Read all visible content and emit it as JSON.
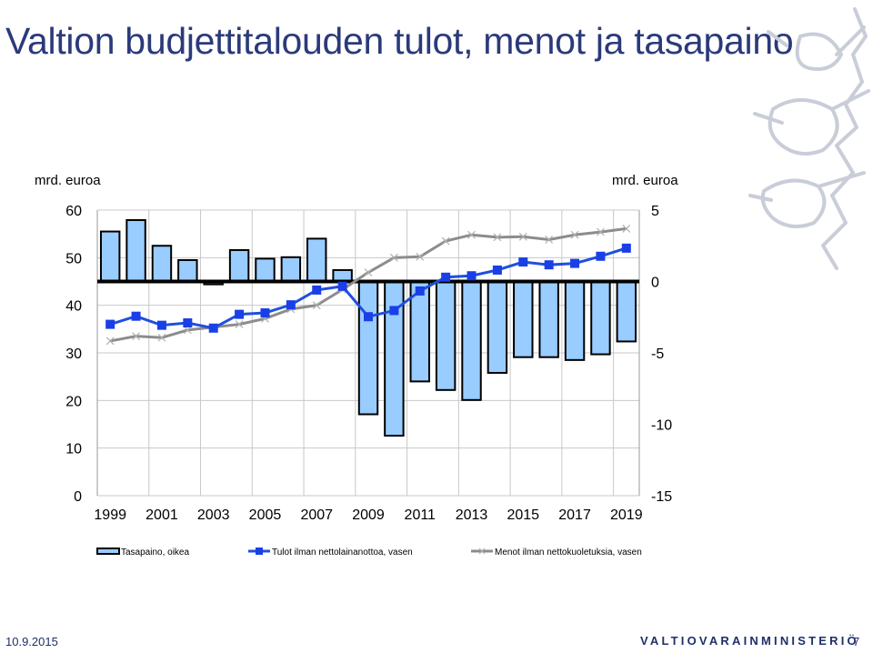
{
  "slide": {
    "title": "Valtion budjettitalouden tulot, menot ja tasapaino",
    "date": "10.9.2015",
    "ministry": "VALTIOVARAINMINISTERIÖ",
    "page_number": "7"
  },
  "colors": {
    "title": "#2b3a7a",
    "bar_fill": "#99ccff",
    "bar_stroke": "#000000",
    "revenue_line": "#1f4fe0",
    "expenditure_line": "#8c8c8c",
    "balance_line": "#000000",
    "grid": "#c8c8c8",
    "crest": "#c9cdd8"
  },
  "chart_data": {
    "type": "bar",
    "left_axis_unit": "mrd. euroa",
    "right_axis_unit": "mrd. euroa",
    "left_ylim": [
      0,
      60
    ],
    "right_ylim": [
      -15,
      5
    ],
    "left_ticks": [
      "0",
      "10",
      "20",
      "30",
      "40",
      "50",
      "60"
    ],
    "right_ticks": [
      "-15",
      "-10",
      "-5",
      "0",
      "5"
    ],
    "x_tick_labels": [
      "1999",
      "2001",
      "2003",
      "2005",
      "2007",
      "2009",
      "2011",
      "2013",
      "2015",
      "2017",
      "2019"
    ],
    "categories": [
      "1999",
      "2000",
      "2001",
      "2002",
      "2003",
      "2004",
      "2005",
      "2006",
      "2007",
      "2008",
      "2009",
      "2010",
      "2011",
      "2012",
      "2013",
      "2014",
      "2015",
      "2016",
      "2017",
      "2018",
      "2019"
    ],
    "grid": true,
    "legend_position": "bottom",
    "series": [
      {
        "name": "Tasapaino, oikea",
        "type": "bar",
        "axis": "right",
        "values": [
          3.5,
          4.3,
          2.5,
          1.5,
          -0.2,
          2.2,
          1.6,
          1.7,
          3.0,
          0.8,
          -9.3,
          -10.8,
          -7.0,
          -7.6,
          -8.3,
          -6.4,
          -5.3,
          -5.3,
          -5.5,
          -5.1,
          -4.2
        ]
      },
      {
        "name": "Tulot ilman nettolainanottoa, vasen",
        "type": "line",
        "axis": "left",
        "values": [
          36.0,
          37.7,
          35.8,
          36.3,
          35.2,
          38.1,
          38.4,
          40.1,
          43.2,
          44.0,
          37.6,
          38.9,
          43.0,
          45.9,
          46.2,
          47.4,
          49.1,
          48.5,
          48.8,
          50.3,
          52.0
        ]
      },
      {
        "name": "Menot ilman nettokuoletuksia, vasen",
        "type": "line",
        "axis": "left",
        "values": [
          32.5,
          33.5,
          33.2,
          34.8,
          35.4,
          36.0,
          37.2,
          39.2,
          40.0,
          43.3,
          46.9,
          50.0,
          50.2,
          53.5,
          54.8,
          54.3,
          54.4,
          53.8,
          54.8,
          55.4,
          56.1
        ]
      }
    ]
  }
}
